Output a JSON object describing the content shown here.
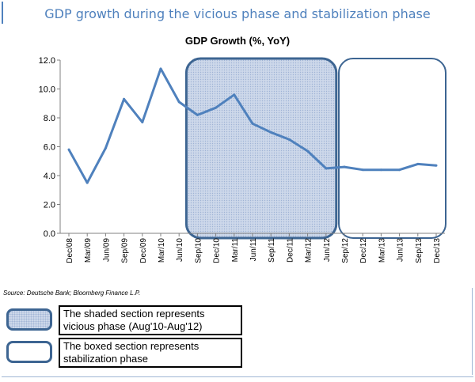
{
  "banner_title": "GDP growth during the vicious phase and stabilization phase",
  "chart_data": {
    "type": "line",
    "title": "GDP Growth (%, YoY)",
    "categories": [
      "Dec/08",
      "Mar/09",
      "Jun/09",
      "Sep/09",
      "Dec/09",
      "Mar/10",
      "Jun/10",
      "Sep/10",
      "Dec/10",
      "Mar/11",
      "Jun/11",
      "Sep/11",
      "Dec/11",
      "Mar/12",
      "Jun/12",
      "Sep/12",
      "Dec/12",
      "Mar/13",
      "Jun/13",
      "Sep/13",
      "Dec/13"
    ],
    "series": [
      {
        "values": [
          5.8,
          3.5,
          5.9,
          9.3,
          7.7,
          11.4,
          9.1,
          8.2,
          8.7,
          9.6,
          7.6,
          7.0,
          6.5,
          5.7,
          4.5,
          4.6,
          4.4,
          4.4,
          4.4,
          4.8,
          4.7
        ]
      }
    ],
    "ylim": [
      0,
      12
    ],
    "yticks": [
      "0.0",
      "2.0",
      "4.0",
      "6.0",
      "8.0",
      "10.0",
      "12.0"
    ],
    "grid": false,
    "line_color": "#4f81bd",
    "shaded_region": {
      "from": "Sep/10",
      "to": "Jun/12"
    },
    "boxed_region": {
      "from": "Sep/12",
      "to": "Dec/13"
    }
  },
  "source_note": "Source: Deutsche Bank; Bloomberg Finance L.P.",
  "legend": [
    {
      "text_line1": "The shaded section represents",
      "text_line2": "vicious phase (Aug'10-Aug'12)"
    },
    {
      "text_line1": "The boxed section represents",
      "text_line2": "stabilization phase"
    }
  ]
}
